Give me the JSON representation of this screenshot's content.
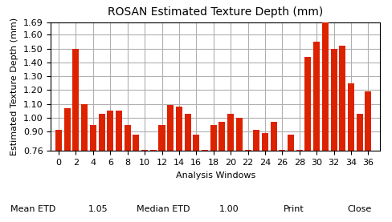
{
  "chart_data": {
    "type": "bar",
    "title": "ROSAN Estimated Texture Depth (mm)",
    "y_label": "Estimated Texture Depth (mm)",
    "x_label": "Analysis Windows",
    "x": [
      0,
      1,
      2,
      3,
      4,
      5,
      6,
      7,
      8,
      9,
      10,
      11,
      12,
      13,
      14,
      15,
      16,
      17,
      18,
      19,
      20,
      21,
      22,
      23,
      24,
      25,
      26,
      27,
      28,
      29,
      30,
      31,
      32,
      33,
      34,
      35,
      36
    ],
    "values": [
      0.91,
      1.07,
      1.5,
      1.1,
      0.95,
      1.03,
      1.05,
      1.05,
      0.95,
      0.88,
      0.77,
      0.77,
      0.95,
      1.09,
      1.08,
      1.03,
      0.88,
      0.77,
      0.95,
      0.97,
      1.03,
      1.0,
      0.77,
      0.91,
      0.89,
      0.97,
      0.77,
      0.88,
      0.77,
      1.44,
      1.55,
      1.69,
      1.5,
      1.52,
      1.25,
      1.03,
      1.19
    ],
    "color": "#dd2200",
    "xlim": [
      -0.9,
      37.4
    ],
    "xticks": [
      0,
      2,
      4,
      6,
      8,
      10,
      12,
      14,
      16,
      18,
      20,
      22,
      24,
      26,
      28,
      30,
      32,
      34,
      36
    ],
    "ylim": [
      0.76,
      1.69
    ],
    "yticks": [
      0.76,
      {
        "value": 0.9,
        "label": "0.90"
      },
      {
        "value": 1.0,
        "label": "1.00"
      },
      {
        "value": 1.1,
        "label": "1.10"
      },
      {
        "value": 1.2,
        "label": "1.20"
      },
      {
        "value": 1.3,
        "label": "1.30"
      },
      {
        "value": 1.4,
        "label": "1.40"
      },
      {
        "value": 1.5,
        "label": "1.50"
      },
      {
        "value": 1.6,
        "label": "1.60"
      },
      1.69
    ],
    "grid": true,
    "annotations": [
      "Mean ETD",
      "1.05",
      "Median ETD",
      "1.00",
      "Print",
      "Close"
    ]
  }
}
